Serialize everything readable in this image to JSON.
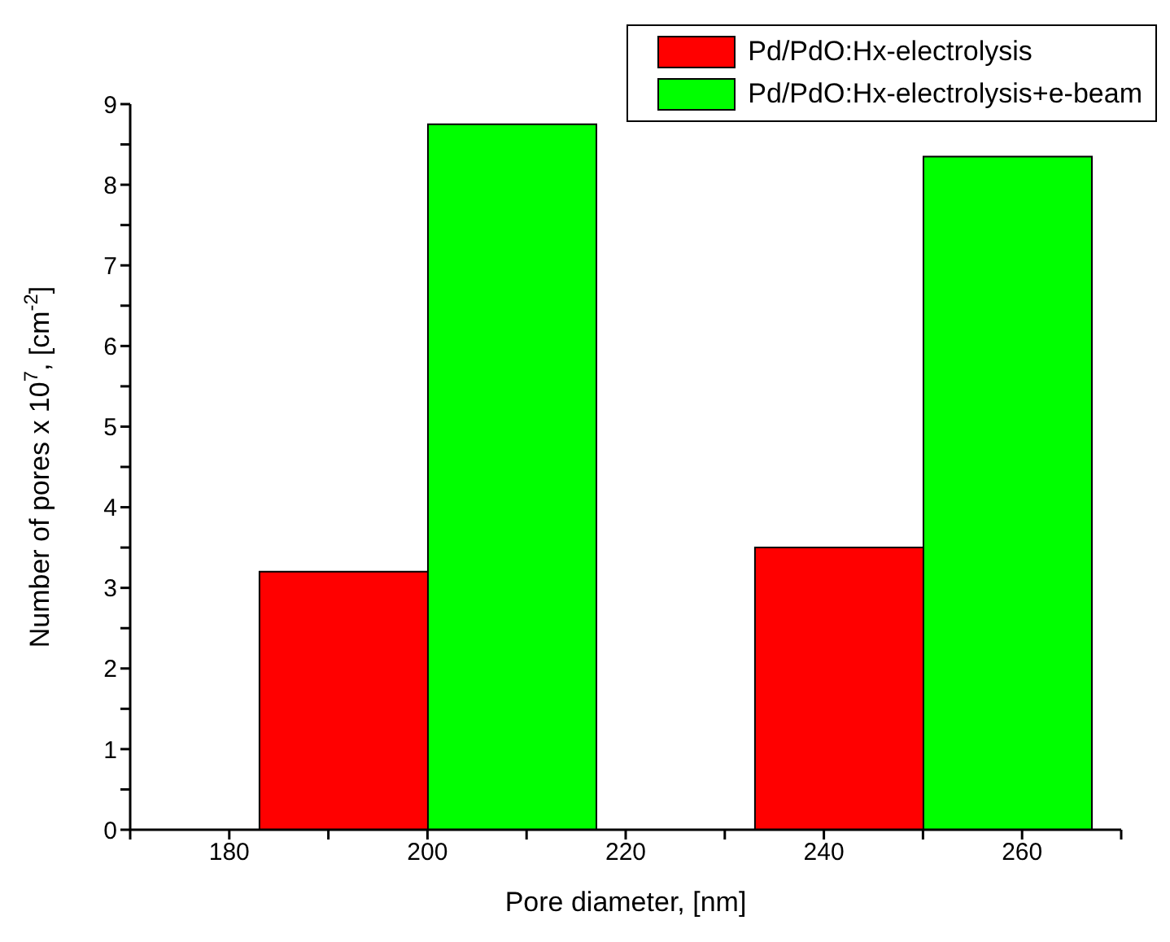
{
  "chart_data": {
    "type": "bar",
    "xlabel": "Pore diameter, [nm]",
    "ylabel": "Number of pores x 10$^{7}$, [cm$^{-2}$]",
    "x": [
      200,
      250
    ],
    "series": [
      {
        "name": "Pd/PdO:Hx-electrolysis",
        "color": "#ff0000",
        "values": [
          3.2,
          3.5
        ]
      },
      {
        "name": "Pd/PdO:Hx-electrolysis+e-beam",
        "color": "#00ff00",
        "values": [
          8.75,
          8.35
        ]
      }
    ],
    "xlim": [
      170,
      270
    ],
    "xticks": [
      {
        "value": 170,
        "label": null
      },
      180,
      {
        "value": 190,
        "label": null
      },
      200,
      {
        "value": 210,
        "label": null
      },
      220,
      {
        "value": 230,
        "label": null
      },
      240,
      {
        "value": 250,
        "label": null
      },
      260,
      {
        "value": 270,
        "label": null
      }
    ],
    "ylim": [
      0,
      9
    ],
    "yticks": [
      0,
      {
        "value": 0.5,
        "label": null
      },
      1,
      {
        "value": 1.5,
        "label": null
      },
      2,
      {
        "value": 2.5,
        "label": null
      },
      3,
      {
        "value": 3.5,
        "label": null
      },
      4,
      {
        "value": 4.5,
        "label": null
      },
      5,
      {
        "value": 5.5,
        "label": null
      },
      6,
      {
        "value": 6.5,
        "label": null
      },
      7,
      {
        "value": 7.5,
        "label": null
      },
      8,
      {
        "value": 8.5,
        "label": null
      },
      9
    ],
    "grid": false,
    "legend": "top right"
  }
}
